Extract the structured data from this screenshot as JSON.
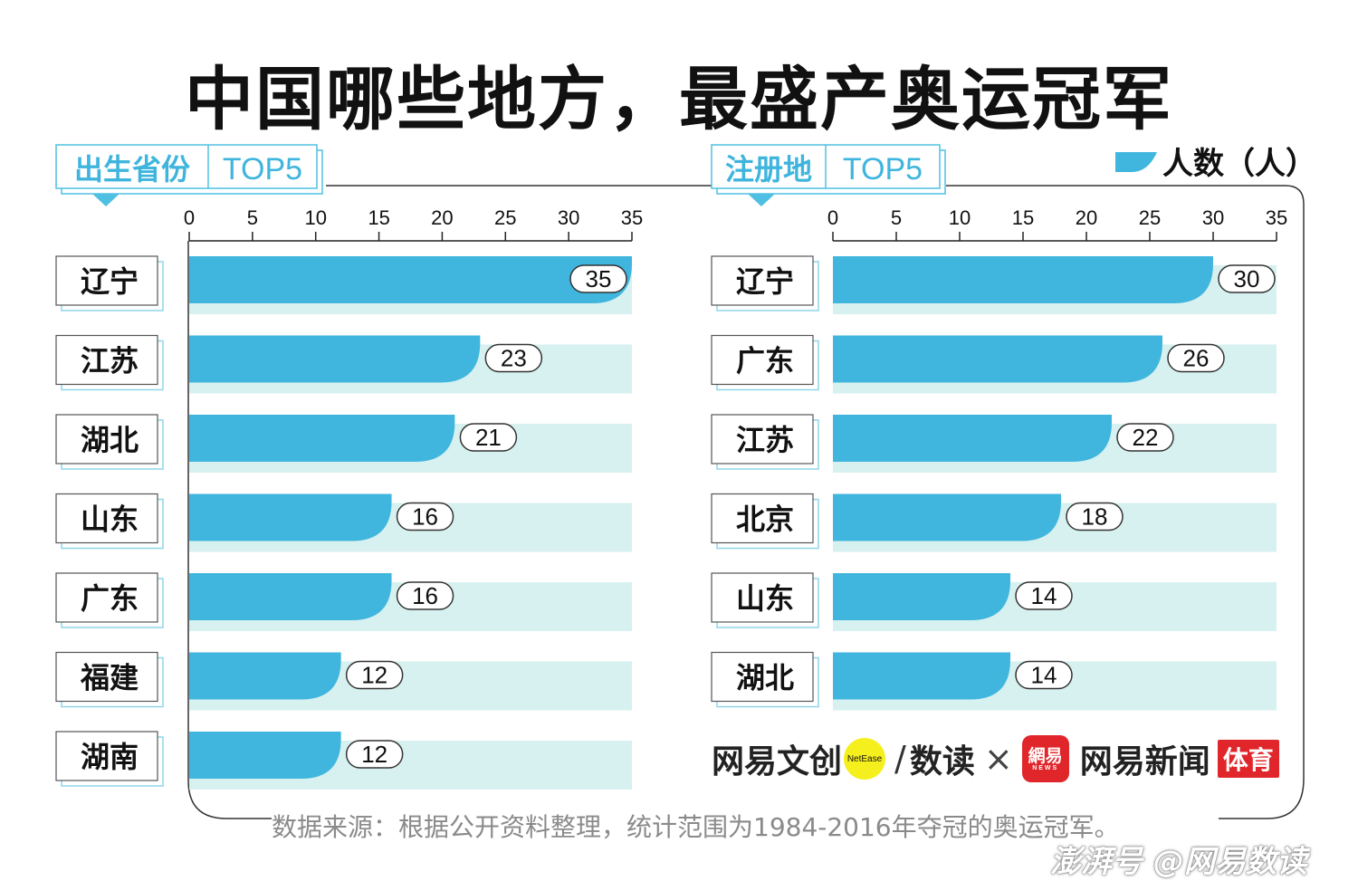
{
  "title": "中国哪些地方，最盛产奥运冠军",
  "legend_label": "人数（人）",
  "source": "数据来源：根据公开资料整理，统计范围为1984-2016年夺冠的奥运冠军。",
  "watermark": "澎湃号 @网易数读",
  "brands": {
    "netease_wenchuang": "网易文创",
    "netease_badge": "NetEase",
    "shudu": "数读",
    "times": "×",
    "slash": "/",
    "news_logo_cn": "網易",
    "news_logo_en": "NEWS",
    "news": "网易新闻",
    "sports": "体育"
  },
  "colors": {
    "bar": "#40b6de",
    "track": "#d6f1ef",
    "tag_text": "#3fb5dd",
    "tag_border": "#4fc0e2"
  },
  "chart_data": [
    {
      "type": "bar",
      "orientation": "horizontal",
      "panel_tag": "出生省份",
      "panel_tag_suffix": "TOP5",
      "categories": [
        "辽宁",
        "江苏",
        "湖北",
        "山东",
        "广东",
        "福建",
        "湖南"
      ],
      "values": [
        35,
        23,
        21,
        16,
        16,
        12,
        12
      ],
      "xlim": [
        0,
        35
      ],
      "xticks": [
        0,
        5,
        10,
        15,
        20,
        25,
        30,
        35
      ],
      "unit": "人数（人）"
    },
    {
      "type": "bar",
      "orientation": "horizontal",
      "panel_tag": "注册地",
      "panel_tag_suffix": "TOP5",
      "categories": [
        "辽宁",
        "广东",
        "江苏",
        "北京",
        "山东",
        "湖北"
      ],
      "values": [
        30,
        26,
        22,
        18,
        14,
        14
      ],
      "xlim": [
        0,
        35
      ],
      "xticks": [
        0,
        5,
        10,
        15,
        20,
        25,
        30,
        35
      ],
      "unit": "人数（人）"
    }
  ]
}
